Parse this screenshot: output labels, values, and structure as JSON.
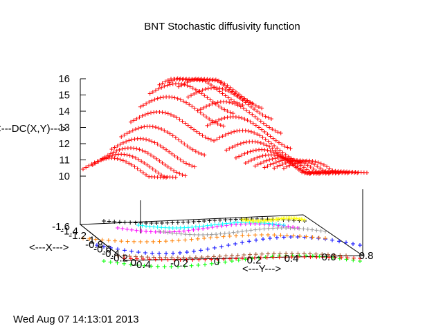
{
  "chart_data": {
    "type": "surface3d",
    "title": "BNT Stochastic diffusivity function",
    "zlabel": "<---DC(X,Y)--->",
    "xlabel": "<---X--->",
    "ylabel": "<---Y--->",
    "timestamp": "Wed Aug 07 14:13:01 2013",
    "z_ticks": [
      "16",
      "15",
      "14",
      "13",
      "12",
      "11",
      "10"
    ],
    "x_ticks": [
      "-1.6",
      "-1.4",
      "-1.2",
      "-1",
      "-0.8",
      "-0.6",
      "-0.4",
      "-0.2",
      "0"
    ],
    "y_ticks": [
      "-0.4",
      "-0.2",
      "0",
      "0.2",
      "0.4",
      "0.6",
      "0.8"
    ],
    "x_range": [
      -1.6,
      0
    ],
    "y_range": [
      -0.4,
      0.8
    ],
    "z_range": [
      9,
      16
    ],
    "surface": {
      "marker": "+",
      "color": "#ff0000",
      "z_min": 9.2,
      "z_max": 15.9,
      "peak_x": -0.9,
      "peak_y": 0.05
    },
    "contour_colors": [
      "#ff0000",
      "#00ff00",
      "#0000ff",
      "#ff00ff",
      "#00ffff",
      "#a0522d",
      "#ff7f00",
      "#000000",
      "#9a9a9a",
      "#ffff00"
    ]
  }
}
